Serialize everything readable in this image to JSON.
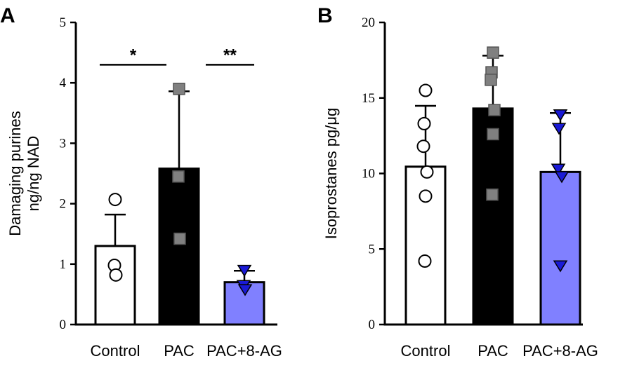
{
  "chart_data": [
    {
      "type": "bar",
      "panel": "A",
      "ylabel_lines": [
        "Damaging purines",
        "ng/ng NAD"
      ],
      "ylim": [
        0,
        5
      ],
      "yticks": [
        0,
        1,
        2,
        3,
        4,
        5
      ],
      "categories": [
        "Control",
        "PAC",
        "PAC+8-AG"
      ],
      "bars": [
        {
          "category": "Control",
          "mean": 1.3,
          "sd_upper": 1.82,
          "fill": "#ffffff",
          "marker": "circle",
          "marker_fill": "#ffffff",
          "points": [
            2.07,
            0.98,
            0.82
          ]
        },
        {
          "category": "PAC",
          "mean": 2.58,
          "sd_upper": 3.86,
          "fill": "#000000",
          "marker": "square",
          "marker_fill": "#808080",
          "points": [
            3.9,
            2.45,
            1.42
          ]
        },
        {
          "category": "PAC+8-AG",
          "mean": 0.7,
          "sd_upper": 0.89,
          "fill": "#8080ff",
          "marker": "triangle-down",
          "marker_fill": "#1a1ad6",
          "points": [
            0.9,
            0.65,
            0.58
          ]
        }
      ],
      "significance": [
        {
          "from": "Control",
          "to": "PAC",
          "label": "*",
          "y": 4.3
        },
        {
          "from": "PAC",
          "to": "PAC+8-AG",
          "label": "**",
          "y": 4.3
        }
      ]
    },
    {
      "type": "bar",
      "panel": "B",
      "ylabel_lines": [
        "Isoprostanes pg/μg"
      ],
      "ylim": [
        0,
        20
      ],
      "yticks": [
        0,
        5,
        10,
        15,
        20
      ],
      "categories": [
        "Control",
        "PAC",
        "PAC+8-AG"
      ],
      "bars": [
        {
          "category": "Control",
          "mean": 10.45,
          "sd_upper": 14.48,
          "fill": "#ffffff",
          "marker": "circle",
          "marker_fill": "#ffffff",
          "points": [
            15.5,
            13.3,
            11.8,
            10.1,
            8.5,
            4.2
          ]
        },
        {
          "category": "PAC",
          "mean": 14.3,
          "sd_upper": 17.8,
          "fill": "#000000",
          "marker": "square",
          "marker_fill": "#808080",
          "points": [
            18.0,
            16.7,
            16.2,
            14.2,
            12.6,
            8.6
          ]
        },
        {
          "category": "PAC+8-AG",
          "mean": 10.1,
          "sd_upper": 14.0,
          "fill": "#8080ff",
          "marker": "triangle-down",
          "marker_fill": "#1a1ad6",
          "points": [
            13.9,
            13.0,
            10.3,
            9.8,
            3.9
          ]
        }
      ],
      "significance": []
    }
  ]
}
